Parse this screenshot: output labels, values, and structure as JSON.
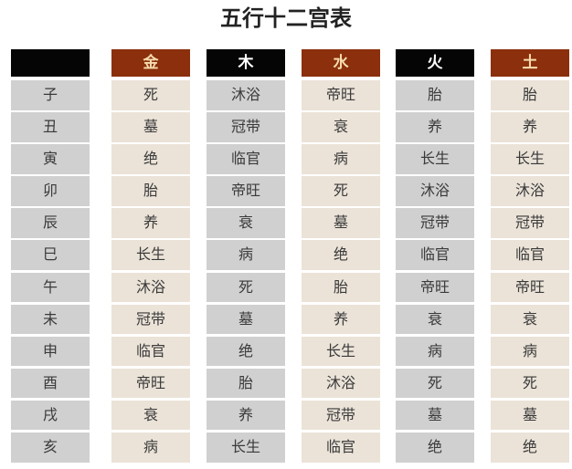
{
  "title": "五行十二宫表",
  "colors": {
    "dark_header": "#050505",
    "brown_header": "#8b2f0c",
    "gray_cell": "#d0d0d0",
    "beige_cell": "#ebe3d8"
  },
  "columns": [
    {
      "header": "",
      "style": "dark",
      "cells": [
        "子",
        "丑",
        "寅",
        "卯",
        "辰",
        "巳",
        "午",
        "未",
        "申",
        "酉",
        "戌",
        "亥"
      ]
    },
    {
      "header": "金",
      "style": "brown",
      "cells": [
        "死",
        "墓",
        "绝",
        "胎",
        "养",
        "长生",
        "沐浴",
        "冠带",
        "临官",
        "帝旺",
        "衰",
        "病"
      ]
    },
    {
      "header": "木",
      "style": "dark",
      "cells": [
        "沐浴",
        "冠带",
        "临官",
        "帝旺",
        "衰",
        "病",
        "死",
        "墓",
        "绝",
        "胎",
        "养",
        "长生"
      ]
    },
    {
      "header": "水",
      "style": "brown",
      "cells": [
        "帝旺",
        "衰",
        "病",
        "死",
        "墓",
        "绝",
        "胎",
        "养",
        "长生",
        "沐浴",
        "冠带",
        "临官"
      ]
    },
    {
      "header": "火",
      "style": "dark",
      "cells": [
        "胎",
        "养",
        "长生",
        "沐浴",
        "冠带",
        "临官",
        "帝旺",
        "衰",
        "病",
        "死",
        "墓",
        "绝"
      ]
    },
    {
      "header": "土",
      "style": "brown",
      "cells": [
        "胎",
        "养",
        "长生",
        "沐浴",
        "冠带",
        "临官",
        "帝旺",
        "衰",
        "病",
        "死",
        "墓",
        "绝"
      ]
    }
  ]
}
